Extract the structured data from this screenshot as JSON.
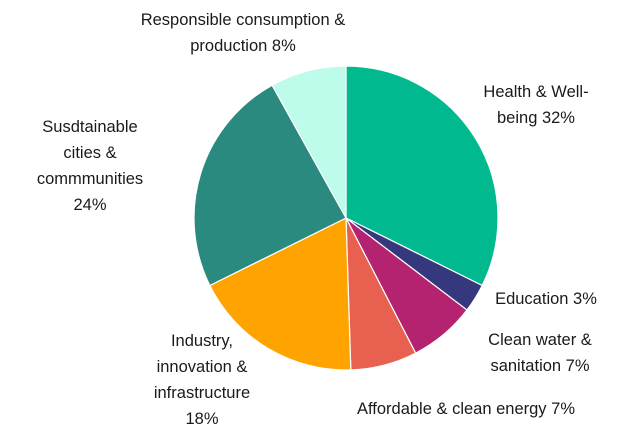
{
  "chart_data": {
    "type": "pie",
    "title": "",
    "slices": [
      {
        "name": "Health & Well-being",
        "value": 32,
        "color": "#00b98e",
        "label_lines": [
          "Health & Well-",
          "being 32%"
        ]
      },
      {
        "name": "Education",
        "value": 3,
        "color": "#35387d",
        "label_lines": [
          "Education 3%"
        ]
      },
      {
        "name": "Clean water & sanitation",
        "value": 7,
        "color": "#b4236f",
        "label_lines": [
          "Clean water &",
          "sanitation 7%"
        ]
      },
      {
        "name": "Affordable & clean energy",
        "value": 7,
        "color": "#e8604f",
        "label_lines": [
          "Affordable & clean energy 7%"
        ]
      },
      {
        "name": "Industry, innovation & infrastructure",
        "value": 18,
        "color": "#ffa300",
        "label_lines": [
          "Industry,",
          "innovation &",
          "infrastructure",
          "18%"
        ]
      },
      {
        "name": "Susdtainable cities & commmunities",
        "value": 24,
        "color": "#2b8a7f",
        "label_lines": [
          "Susdtainable",
          "cities &",
          "commmunities",
          "24%"
        ]
      },
      {
        "name": "Responsible consumption & production",
        "value": 8,
        "color": "#bdfbea",
        "label_lines": [
          "Responsible consumption &",
          "production  8%"
        ]
      }
    ]
  }
}
